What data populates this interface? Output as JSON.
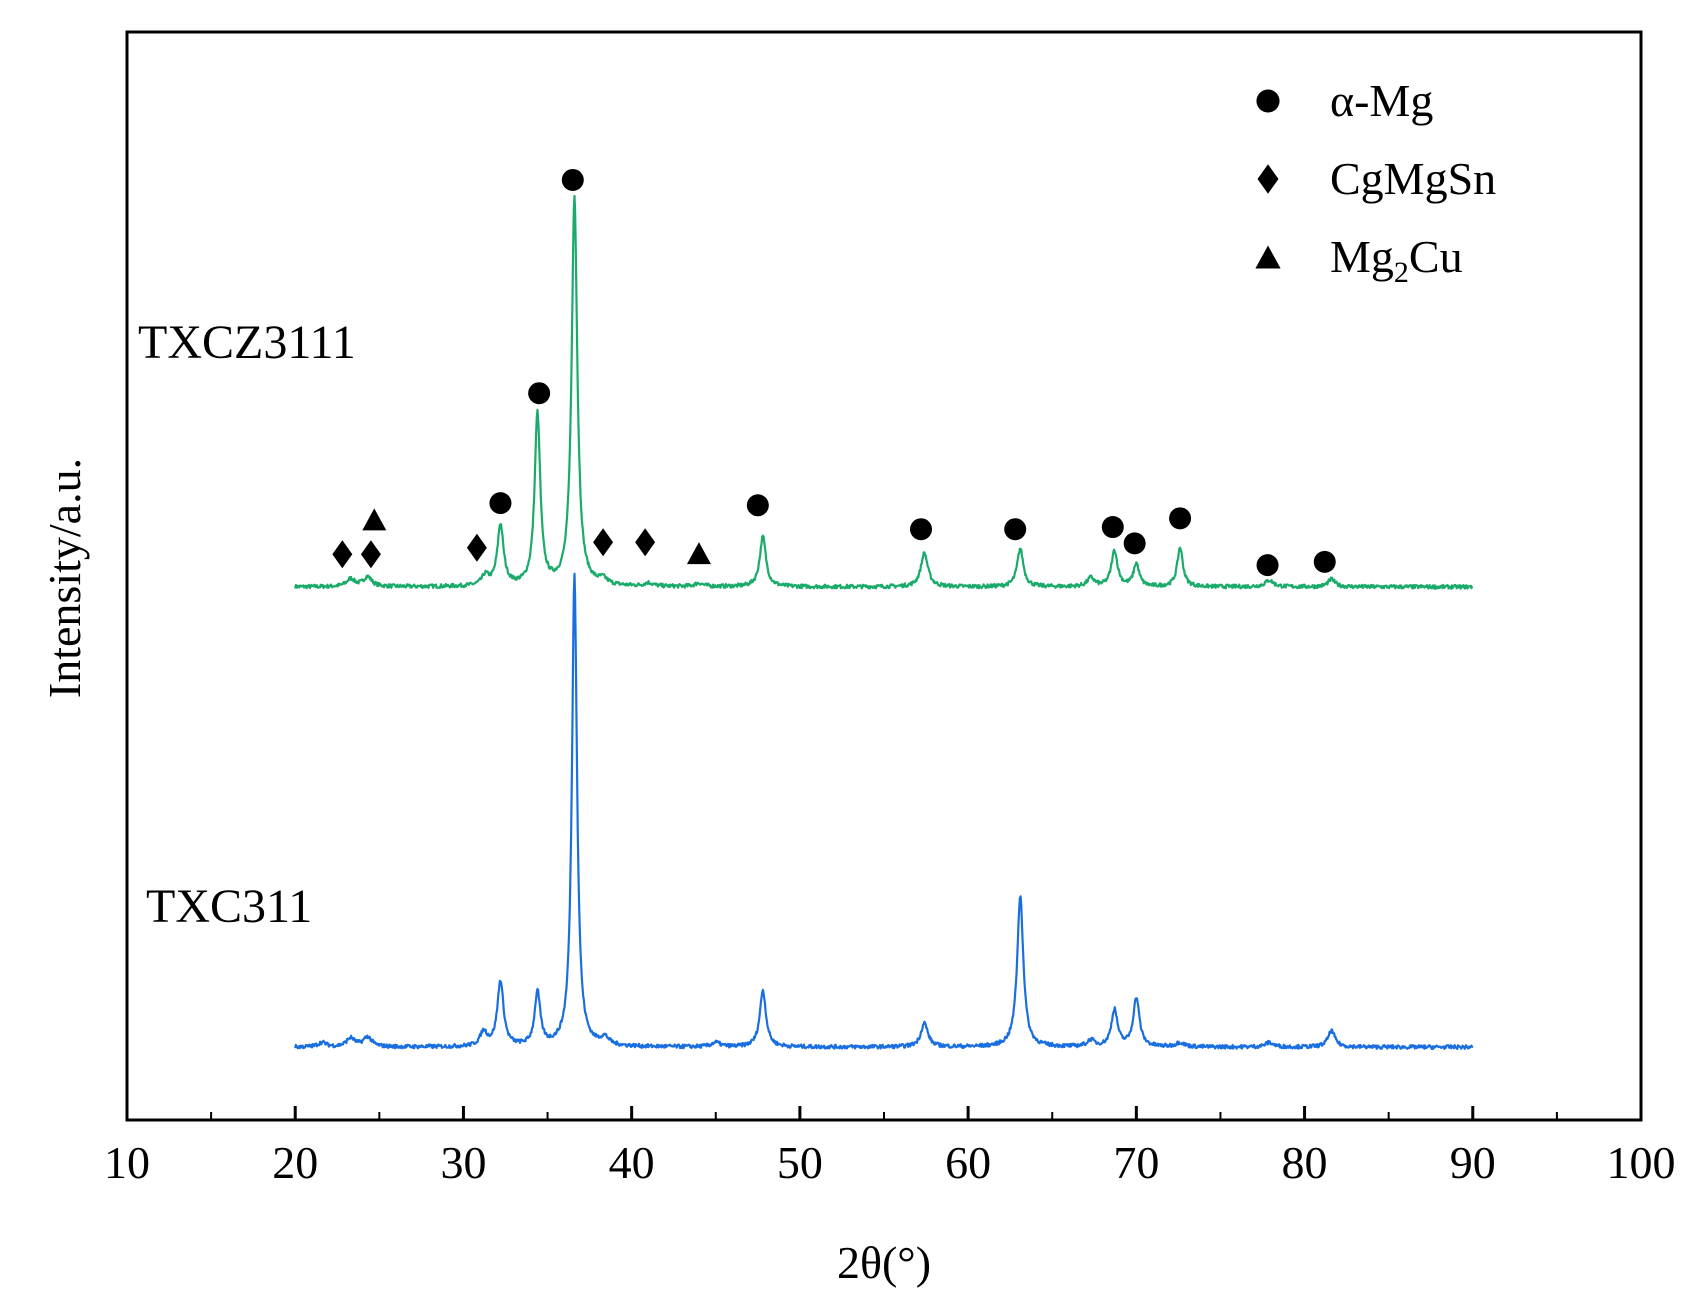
{
  "chart_data": {
    "type": "line",
    "title": "",
    "xlabel": "2θ(°)",
    "ylabel": "Intensity/a.u.",
    "xlim": [
      10,
      100
    ],
    "xticks": [
      10,
      20,
      30,
      40,
      50,
      60,
      70,
      80,
      90,
      100
    ],
    "xtick_labels": [
      "10",
      "20",
      "30",
      "40",
      "50",
      "60",
      "70",
      "80",
      "90",
      "100"
    ],
    "ylim": [
      0,
      100
    ],
    "grid": false,
    "legend": {
      "placement": "top-right",
      "entries": [
        {
          "marker": "circle",
          "label": "α-Mg",
          "label_main": "α-Mg",
          "label_sub": "",
          "label_tail": ""
        },
        {
          "marker": "diamond",
          "label": "CgMgSn",
          "label_main": "CgMgSn",
          "label_sub": "",
          "label_tail": ""
        },
        {
          "marker": "triangle",
          "label": "Mg2Cu",
          "label_main": "Mg",
          "label_sub": "2",
          "label_tail": "Cu"
        }
      ]
    },
    "series": [
      {
        "name": "TXCZ3111",
        "color": "#1aab6b",
        "baseline": 49,
        "x_range": [
          20,
          90
        ],
        "peaks": [
          {
            "x": 23.3,
            "h": 0.7,
            "w": 0.3
          },
          {
            "x": 24.3,
            "h": 0.9,
            "w": 0.3
          },
          {
            "x": 31.3,
            "h": 0.9,
            "w": 0.25
          },
          {
            "x": 32.2,
            "h": 5.6,
            "w": 0.22
          },
          {
            "x": 34.4,
            "h": 15.8,
            "w": 0.2
          },
          {
            "x": 36.6,
            "h": 35.8,
            "w": 0.2
          },
          {
            "x": 38.3,
            "h": 0.5,
            "w": 0.3
          },
          {
            "x": 41.0,
            "h": 0.3,
            "w": 0.3
          },
          {
            "x": 44.0,
            "h": 0.3,
            "w": 0.3
          },
          {
            "x": 47.8,
            "h": 4.6,
            "w": 0.22
          },
          {
            "x": 57.4,
            "h": 3.1,
            "w": 0.25
          },
          {
            "x": 63.1,
            "h": 3.5,
            "w": 0.22
          },
          {
            "x": 67.3,
            "h": 0.8,
            "w": 0.25
          },
          {
            "x": 68.7,
            "h": 3.3,
            "w": 0.22
          },
          {
            "x": 70.0,
            "h": 2.1,
            "w": 0.2
          },
          {
            "x": 72.6,
            "h": 3.6,
            "w": 0.2
          },
          {
            "x": 77.9,
            "h": 0.6,
            "w": 0.3
          },
          {
            "x": 81.6,
            "h": 0.7,
            "w": 0.25
          }
        ],
        "label": "TXCZ3111"
      },
      {
        "name": "TXC311",
        "color": "#1a6fe0",
        "baseline": 6.7,
        "x_range": [
          20,
          90
        ],
        "peaks": [
          {
            "x": 21.6,
            "h": 0.4,
            "w": 0.3
          },
          {
            "x": 23.3,
            "h": 0.8,
            "w": 0.3
          },
          {
            "x": 24.3,
            "h": 0.9,
            "w": 0.3
          },
          {
            "x": 31.2,
            "h": 1.3,
            "w": 0.25
          },
          {
            "x": 32.2,
            "h": 6.0,
            "w": 0.22
          },
          {
            "x": 34.4,
            "h": 4.9,
            "w": 0.2
          },
          {
            "x": 36.6,
            "h": 43.5,
            "w": 0.18
          },
          {
            "x": 38.4,
            "h": 0.7,
            "w": 0.3
          },
          {
            "x": 45.0,
            "h": 0.4,
            "w": 0.3
          },
          {
            "x": 47.8,
            "h": 5.2,
            "w": 0.22
          },
          {
            "x": 57.4,
            "h": 2.2,
            "w": 0.25
          },
          {
            "x": 63.1,
            "h": 13.9,
            "w": 0.22
          },
          {
            "x": 67.3,
            "h": 0.6,
            "w": 0.25
          },
          {
            "x": 68.7,
            "h": 3.4,
            "w": 0.22
          },
          {
            "x": 70.0,
            "h": 4.5,
            "w": 0.22
          },
          {
            "x": 72.6,
            "h": 0.4,
            "w": 0.3
          },
          {
            "x": 77.9,
            "h": 0.4,
            "w": 0.3
          },
          {
            "x": 81.6,
            "h": 1.5,
            "w": 0.25
          }
        ],
        "label": "TXC311"
      }
    ],
    "annotations": [
      {
        "phase": "CgMgSn",
        "marker": "diamond",
        "x": 22.8,
        "y": 52.0
      },
      {
        "phase": "CgMgSn",
        "marker": "diamond",
        "x": 24.5,
        "y": 52.0
      },
      {
        "phase": "Mg2Cu",
        "marker": "triangle",
        "x": 24.7,
        "y": 55.2
      },
      {
        "phase": "CgMgSn",
        "marker": "diamond",
        "x": 30.8,
        "y": 52.6
      },
      {
        "phase": "α-Mg",
        "marker": "circle",
        "x": 32.2,
        "y": 56.7
      },
      {
        "phase": "α-Mg",
        "marker": "circle",
        "x": 34.5,
        "y": 66.8
      },
      {
        "phase": "α-Mg",
        "marker": "circle",
        "x": 36.5,
        "y": 86.4
      },
      {
        "phase": "CgMgSn",
        "marker": "diamond",
        "x": 38.3,
        "y": 53.1
      },
      {
        "phase": "CgMgSn",
        "marker": "diamond",
        "x": 40.8,
        "y": 53.1
      },
      {
        "phase": "Mg2Cu",
        "marker": "triangle",
        "x": 44.0,
        "y": 52.1
      },
      {
        "phase": "α-Mg",
        "marker": "circle",
        "x": 47.5,
        "y": 56.5
      },
      {
        "phase": "α-Mg",
        "marker": "circle",
        "x": 57.2,
        "y": 54.3
      },
      {
        "phase": "α-Mg",
        "marker": "circle",
        "x": 62.8,
        "y": 54.3
      },
      {
        "phase": "α-Mg",
        "marker": "circle",
        "x": 68.6,
        "y": 54.5
      },
      {
        "phase": "α-Mg",
        "marker": "circle",
        "x": 69.9,
        "y": 53.0
      },
      {
        "phase": "α-Mg",
        "marker": "circle",
        "x": 72.6,
        "y": 55.3
      },
      {
        "phase": "α-Mg",
        "marker": "circle",
        "x": 77.8,
        "y": 51.0
      },
      {
        "phase": "α-Mg",
        "marker": "circle",
        "x": 81.2,
        "y": 51.3
      }
    ]
  }
}
